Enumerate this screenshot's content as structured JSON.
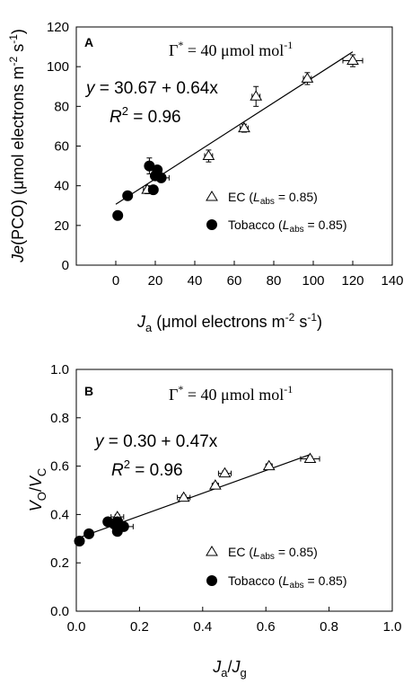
{
  "chart_data": [
    {
      "type": "scatter",
      "panel_label": "A",
      "xlabel": {
        "main": "J",
        "sub": "a",
        "rest_pre": " (μmol electrons m",
        "sup1": "-2",
        "mid": " s",
        "sup2": "-1",
        "close": ")"
      },
      "ylabel": {
        "main": "Je",
        "rest_pre": "(PCO) (μmol electrons m",
        "sup1": "-2",
        "mid": " s",
        "sup2": "-1",
        "close": ")"
      },
      "xlim": [
        -20,
        140
      ],
      "ylim": [
        0,
        120
      ],
      "xticks": [
        0,
        20,
        40,
        60,
        80,
        100,
        120,
        140
      ],
      "yticks": [
        0,
        20,
        40,
        60,
        80,
        100,
        120
      ],
      "xtick_labels": [
        "0",
        "20",
        "40",
        "60",
        "80",
        "100",
        "120",
        "140"
      ],
      "ytick_labels": [
        "0",
        "20",
        "40",
        "60",
        "80",
        "100",
        "120"
      ],
      "gamma_label": {
        "symbol": "Γ",
        "sup": "*",
        "text": " = 40 μmol mol",
        "sup2": "-1"
      },
      "equation": {
        "pre": "y",
        "text": " = 30.67 + 0.64x"
      },
      "r2": {
        "main": "R",
        "sup": "2",
        "text": " = 0.96"
      },
      "fit": {
        "intercept": 30.67,
        "slope": 0.64,
        "x_range": [
          0,
          120
        ]
      },
      "legend": {
        "placement": "bottom-right",
        "items": [
          {
            "marker": "open-triangle",
            "name": "EC",
            "lpre": " (",
            "lmain": "L",
            "lsub": "abs",
            "lval": " = 0.85)"
          },
          {
            "marker": "filled-circle",
            "name": "Tobacco",
            "lpre": " (",
            "lmain": "L",
            "lsub": "abs",
            "lval": " = 0.85)"
          }
        ]
      },
      "series": [
        {
          "name": "EC",
          "marker": "open-triangle",
          "points": [
            {
              "x": 120,
              "y": 103,
              "xerr": 5,
              "yerr": 3
            },
            {
              "x": 97,
              "y": 94,
              "xerr": 2,
              "yerr": 3
            },
            {
              "x": 71,
              "y": 85,
              "xerr": 2,
              "yerr": 5
            },
            {
              "x": 65,
              "y": 69,
              "xerr": 2,
              "yerr": 2
            },
            {
              "x": 47,
              "y": 55,
              "xerr": 2,
              "yerr": 3
            },
            {
              "x": 16,
              "y": 38,
              "xerr": 2,
              "yerr": 2
            }
          ]
        },
        {
          "name": "Tobacco",
          "marker": "filled-circle",
          "points": [
            {
              "x": 1,
              "y": 25,
              "xerr": 1,
              "yerr": 2
            },
            {
              "x": 6,
              "y": 35,
              "xerr": 2,
              "yerr": 1
            },
            {
              "x": 17,
              "y": 50,
              "xerr": 2,
              "yerr": 4
            },
            {
              "x": 21,
              "y": 48,
              "xerr": 2,
              "yerr": 2
            },
            {
              "x": 20,
              "y": 45,
              "xerr": 2,
              "yerr": 2
            },
            {
              "x": 23,
              "y": 44,
              "xerr": 4,
              "yerr": 2
            },
            {
              "x": 19,
              "y": 38,
              "xerr": 2,
              "yerr": 2
            }
          ]
        }
      ]
    },
    {
      "type": "scatter",
      "panel_label": "B",
      "xlabel": {
        "main": "J",
        "sub": "a",
        "slash": "/",
        "main2": "J",
        "sub2": "g"
      },
      "ylabel": {
        "main": "V",
        "sub": "O",
        "slash": "/",
        "main2": "V",
        "sub2": "C"
      },
      "xlim": [
        0,
        1
      ],
      "ylim": [
        0,
        1
      ],
      "xticks": [
        0,
        0.2,
        0.4,
        0.6,
        0.8,
        1.0
      ],
      "yticks": [
        0,
        0.2,
        0.4,
        0.6,
        0.8,
        1.0
      ],
      "xtick_labels": [
        "0.0",
        "0.2",
        "0.4",
        "0.6",
        "0.8",
        "1.0"
      ],
      "ytick_labels": [
        "0.0",
        "0.2",
        "0.4",
        "0.6",
        "0.8",
        "1.0"
      ],
      "gamma_label": {
        "symbol": "Γ",
        "sup": "*",
        "text": " = 40 μmol mol",
        "sup2": "-1"
      },
      "equation": {
        "pre": "y",
        "text": " = 0.30 + 0.47x"
      },
      "r2": {
        "main": "R",
        "sup": "2",
        "text": " = 0.96"
      },
      "fit": {
        "intercept": 0.3,
        "slope": 0.47,
        "x_range": [
          0,
          0.74
        ]
      },
      "legend": {
        "placement": "bottom-right",
        "items": [
          {
            "marker": "open-triangle",
            "name": "EC",
            "lpre": " (",
            "lmain": "L",
            "lsub": "abs",
            "lval": " = 0.85)"
          },
          {
            "marker": "filled-circle",
            "name": "Tobacco",
            "lpre": " (",
            "lmain": "L",
            "lsub": "abs",
            "lval": " = 0.85)"
          }
        ]
      },
      "series": [
        {
          "name": "EC",
          "marker": "open-triangle",
          "points": [
            {
              "x": 0.74,
              "y": 0.63,
              "xerr": 0.03,
              "yerr": 0.01
            },
            {
              "x": 0.61,
              "y": 0.6,
              "xerr": 0.01,
              "yerr": 0.01
            },
            {
              "x": 0.47,
              "y": 0.57,
              "xerr": 0.02,
              "yerr": 0.01
            },
            {
              "x": 0.44,
              "y": 0.52,
              "xerr": 0.01,
              "yerr": 0.01
            },
            {
              "x": 0.34,
              "y": 0.47,
              "xerr": 0.02,
              "yerr": 0.01
            },
            {
              "x": 0.13,
              "y": 0.39,
              "xerr": 0.02,
              "yerr": 0.01
            }
          ]
        },
        {
          "name": "Tobacco",
          "marker": "filled-circle",
          "points": [
            {
              "x": 0.01,
              "y": 0.29,
              "xerr": 0.01,
              "yerr": 0.01
            },
            {
              "x": 0.04,
              "y": 0.32,
              "xerr": 0.01,
              "yerr": 0.01
            },
            {
              "x": 0.1,
              "y": 0.37,
              "xerr": 0.01,
              "yerr": 0.01
            },
            {
              "x": 0.12,
              "y": 0.36,
              "xerr": 0.02,
              "yerr": 0.01
            },
            {
              "x": 0.13,
              "y": 0.37,
              "xerr": 0.01,
              "yerr": 0.01
            },
            {
              "x": 0.15,
              "y": 0.35,
              "xerr": 0.03,
              "yerr": 0.01
            },
            {
              "x": 0.13,
              "y": 0.33,
              "xerr": 0.01,
              "yerr": 0.01
            }
          ]
        }
      ]
    }
  ]
}
